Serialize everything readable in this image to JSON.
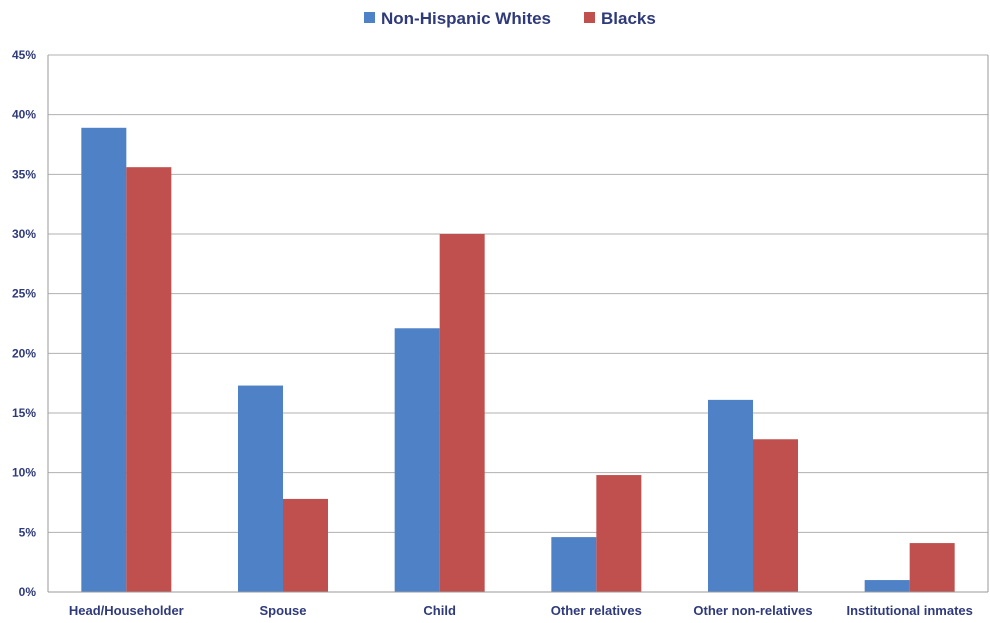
{
  "chart_data": {
    "type": "bar",
    "title": "",
    "xlabel": "",
    "ylabel": "",
    "categories": [
      "Head/Householder",
      "Spouse",
      "Child",
      "Other relatives",
      "Other non-relatives",
      "Institutional inmates"
    ],
    "series": [
      {
        "name": "Non-Hispanic Whites",
        "color": "#4f81c7",
        "values": [
          38.9,
          17.3,
          22.1,
          4.6,
          16.1,
          1.0
        ]
      },
      {
        "name": "Blacks",
        "color": "#c0504d",
        "values": [
          35.6,
          7.8,
          30.0,
          9.8,
          12.8,
          4.1
        ]
      }
    ],
    "ylim": [
      0,
      45
    ],
    "yticks": [
      {
        "value": 0,
        "label": "0%"
      },
      {
        "value": 5,
        "label": "5%"
      },
      {
        "value": 10,
        "label": "10%"
      },
      {
        "value": 15,
        "label": "15%"
      },
      {
        "value": 20,
        "label": "20%"
      },
      {
        "value": 25,
        "label": "25%"
      },
      {
        "value": 30,
        "label": "30%"
      },
      {
        "value": 35,
        "label": "35%"
      },
      {
        "value": 40,
        "label": "40%"
      },
      {
        "value": 45,
        "label": "45%"
      }
    ],
    "grid": true,
    "legend_position": "top-center"
  }
}
